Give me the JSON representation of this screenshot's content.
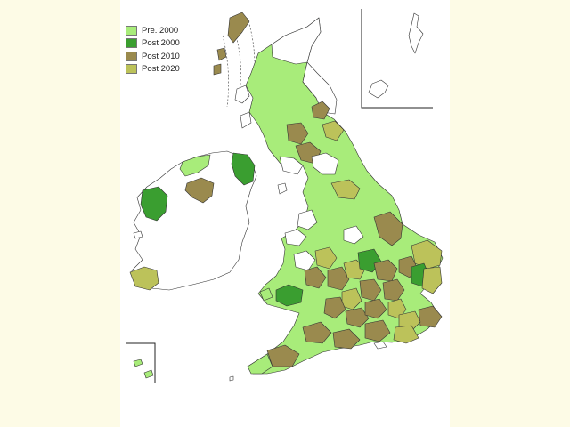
{
  "legend": {
    "items": [
      {
        "label": "Pre.  2000",
        "color": "#a8ec7a"
      },
      {
        "label": "Post 2000",
        "color": "#3a9e30"
      },
      {
        "label": "Post 2010",
        "color": "#9a8a4e"
      },
      {
        "label": "Post 2020",
        "color": "#bcc25a"
      }
    ]
  },
  "colors": {
    "unshaded": "#ffffff",
    "page_background": "#fdfbe6",
    "outline": "#333333"
  }
}
